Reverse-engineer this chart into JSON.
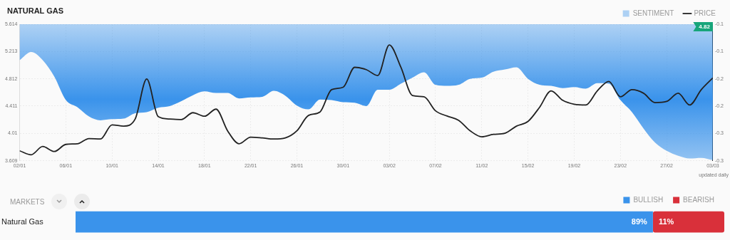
{
  "chart_data": [
    {
      "type": "line",
      "title": "NATURAL GAS",
      "legend": "top right",
      "grid": true,
      "x": [
        "--01-02",
        "--01-03",
        "--01-04",
        "--01-05",
        "--01-06",
        "--01-07",
        "--01-08",
        "--01-09",
        "--01-10",
        "--01-11",
        "--01-12",
        "--01-13",
        "--01-14",
        "--01-15",
        "--01-16",
        "--01-17",
        "--01-18",
        "--01-19",
        "--01-20",
        "--01-21",
        "--01-22",
        "--01-23",
        "--01-24",
        "--01-25",
        "--01-26",
        "--01-27",
        "--01-28",
        "--01-29",
        "--01-30",
        "--01-31",
        "--02-01",
        "--02-02",
        "--02-03",
        "--02-04",
        "--02-05",
        "--02-06",
        "--02-07",
        "--02-08",
        "--02-09",
        "--02-10",
        "--02-11",
        "--02-12",
        "--02-13",
        "--02-14",
        "--02-15",
        "--02-16",
        "--02-17",
        "--02-18",
        "--02-19",
        "--02-20",
        "--02-21",
        "--02-22",
        "--02-23",
        "--02-24",
        "--02-25",
        "--02-26",
        "--02-27",
        "--02-28",
        "--03-01",
        "--03-02",
        "--03-03"
      ],
      "xlim": [
        "--01-02",
        "--03-03"
      ],
      "xticks": [
        {
          "value": "--01-02",
          "label": "02/01"
        },
        {
          "value": "--01-06",
          "label": "06/01"
        },
        {
          "value": "--01-10",
          "label": "10/01"
        },
        {
          "value": "--01-14",
          "label": "14/01"
        },
        {
          "value": "--01-18",
          "label": "18/01"
        },
        {
          "value": "--01-22",
          "label": "22/01"
        },
        {
          "value": "--01-26",
          "label": "26/01"
        },
        {
          "value": "--01-30",
          "label": "30/01"
        },
        {
          "value": "--02-03",
          "label": "03/02"
        },
        {
          "value": "--02-07",
          "label": "07/02"
        },
        {
          "value": "--02-11",
          "label": "11/02"
        },
        {
          "value": "--02-15",
          "label": "15/02"
        },
        {
          "value": "--02-19",
          "label": "19/02"
        },
        {
          "value": "--02-23",
          "label": "23/02"
        },
        {
          "value": "--02-27",
          "label": "27/02"
        },
        {
          "value": "--03-03",
          "label": "03/03"
        }
      ],
      "ylim": [
        3.609,
        5.614
      ],
      "yticks": [
        3.609,
        4.01,
        4.411,
        4.812,
        5.213,
        5.614
      ],
      "y2lim": [
        -0.31,
        -0.06
      ],
      "y2ticks": [
        {
          "value": -0.31,
          "label": "-0.3"
        },
        {
          "value": -0.26,
          "label": "-0.3"
        },
        {
          "value": -0.21,
          "label": "-0.2"
        },
        {
          "value": -0.16,
          "label": "-0.2"
        },
        {
          "value": -0.11,
          "label": "-0.1"
        },
        {
          "value": -0.06,
          "label": "-0.1"
        }
      ],
      "series": [
        {
          "name": "SENTIMENT",
          "type": "area",
          "axis": "y2",
          "color": "#3a93eb",
          "values": [
            -0.126,
            -0.111,
            -0.126,
            -0.156,
            -0.199,
            -0.212,
            -0.229,
            -0.236,
            -0.234,
            -0.233,
            -0.223,
            -0.221,
            -0.213,
            -0.21,
            -0.201,
            -0.19,
            -0.183,
            -0.186,
            -0.186,
            -0.196,
            -0.194,
            -0.193,
            -0.182,
            -0.191,
            -0.209,
            -0.216,
            -0.198,
            -0.199,
            -0.203,
            -0.204,
            -0.21,
            -0.18,
            -0.18,
            -0.169,
            -0.158,
            -0.148,
            -0.171,
            -0.173,
            -0.171,
            -0.16,
            -0.158,
            -0.147,
            -0.143,
            -0.139,
            -0.16,
            -0.171,
            -0.173,
            -0.177,
            -0.175,
            -0.178,
            -0.168,
            -0.169,
            -0.199,
            -0.221,
            -0.251,
            -0.277,
            -0.292,
            -0.301,
            -0.306,
            -0.305,
            -0.309
          ]
        },
        {
          "name": "PRICE",
          "type": "line",
          "color": "#222222",
          "values": [
            3.754,
            3.696,
            3.817,
            3.744,
            3.848,
            3.858,
            3.934,
            3.927,
            4.135,
            4.117,
            4.221,
            4.809,
            4.256,
            4.221,
            4.214,
            4.314,
            4.262,
            4.366,
            4.048,
            3.858,
            3.955,
            3.944,
            3.927,
            3.944,
            4.048,
            4.273,
            4.325,
            4.653,
            4.688,
            4.981,
            4.947,
            4.86,
            5.31,
            4.981,
            4.566,
            4.548,
            4.341,
            4.265,
            4.202,
            4.047,
            3.96,
            3.995,
            4.012,
            4.116,
            4.185,
            4.393,
            4.635,
            4.496,
            4.438,
            4.427,
            4.635,
            4.773,
            4.548,
            4.652,
            4.6,
            4.462,
            4.479,
            4.6,
            4.427,
            4.652,
            4.825
          ]
        }
      ],
      "annotations": [
        "4.82",
        "updated daily"
      ]
    },
    {
      "type": "bar",
      "title": "MARKETS",
      "orientation": "horizontal",
      "stacked": true,
      "legend": "top right",
      "tick_labels": "y",
      "categories": [
        "Natural Gas"
      ],
      "series": [
        {
          "name": "BULLISH",
          "color": "#3a93eb",
          "values": [
            89
          ],
          "value_labels": [
            "89%"
          ]
        },
        {
          "name": "BEARISH",
          "color": "#d9303a",
          "values": [
            11
          ],
          "value_labels": [
            "11%"
          ]
        }
      ]
    }
  ]
}
